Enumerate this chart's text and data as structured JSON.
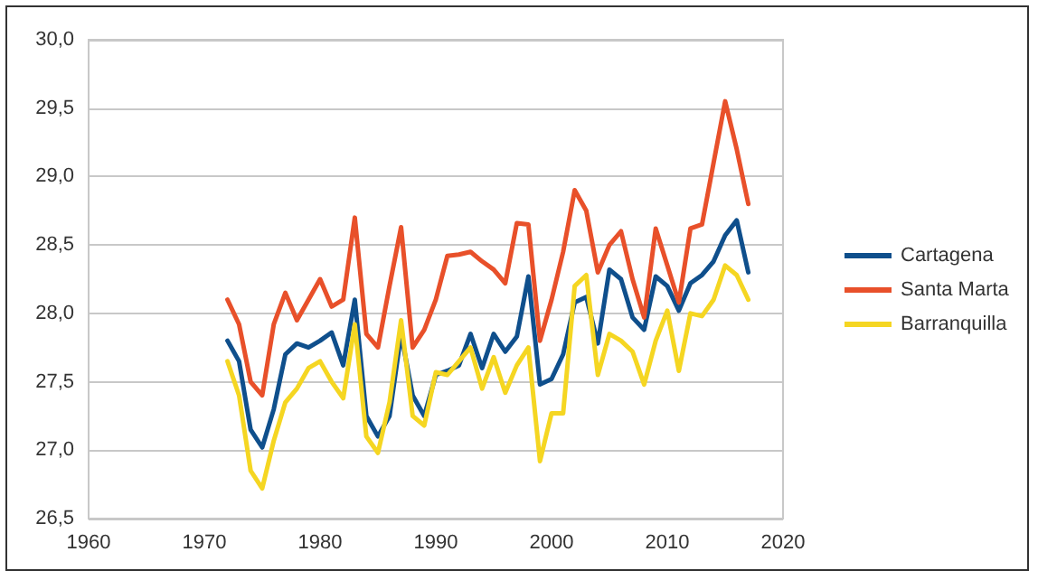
{
  "chart_data": {
    "type": "line",
    "x": [
      1972,
      1973,
      1974,
      1975,
      1976,
      1977,
      1978,
      1979,
      1980,
      1981,
      1982,
      1983,
      1984,
      1985,
      1986,
      1987,
      1988,
      1989,
      1990,
      1991,
      1992,
      1993,
      1994,
      1995,
      1996,
      1997,
      1998,
      1999,
      2000,
      2001,
      2002,
      2003,
      2004,
      2005,
      2006,
      2007,
      2008,
      2009,
      2010,
      2011,
      2012,
      2013,
      2014,
      2015,
      2016,
      2017
    ],
    "series": [
      {
        "name": "Cartagena",
        "color": "#0f4f8c",
        "values": [
          27.8,
          27.65,
          27.15,
          27.02,
          27.3,
          27.7,
          27.78,
          27.75,
          27.8,
          27.86,
          27.62,
          28.1,
          27.25,
          27.1,
          27.25,
          27.85,
          27.4,
          27.25,
          27.55,
          27.58,
          27.62,
          27.85,
          27.6,
          27.85,
          27.72,
          27.83,
          28.27,
          27.48,
          27.52,
          27.7,
          28.08,
          28.12,
          27.78,
          28.32,
          28.25,
          27.97,
          27.88,
          28.27,
          28.2,
          28.02,
          28.22,
          28.28,
          28.38,
          28.57,
          28.68,
          28.3
        ]
      },
      {
        "name": "Santa Marta",
        "color": "#e8502a",
        "values": [
          28.1,
          27.92,
          27.5,
          27.4,
          27.92,
          28.15,
          27.95,
          28.1,
          28.25,
          28.05,
          28.1,
          28.7,
          27.85,
          27.75,
          28.2,
          28.63,
          27.75,
          27.88,
          28.1,
          28.42,
          28.43,
          28.45,
          28.38,
          28.32,
          28.22,
          28.66,
          28.65,
          27.8,
          28.1,
          28.45,
          28.9,
          28.75,
          28.3,
          28.5,
          28.6,
          28.25,
          27.97,
          28.62,
          28.35,
          28.08,
          28.62,
          28.65,
          29.1,
          29.55,
          29.2,
          28.8
        ]
      },
      {
        "name": "Barranquilla",
        "color": "#f5d622",
        "values": [
          27.65,
          27.4,
          26.85,
          26.72,
          27.07,
          27.35,
          27.45,
          27.6,
          27.65,
          27.5,
          27.38,
          27.92,
          27.1,
          26.98,
          27.35,
          27.95,
          27.25,
          27.18,
          27.57,
          27.55,
          27.65,
          27.75,
          27.45,
          27.68,
          27.42,
          27.62,
          27.75,
          26.92,
          27.27,
          27.27,
          28.2,
          28.28,
          27.55,
          27.85,
          27.8,
          27.72,
          27.48,
          27.8,
          28.02,
          27.58,
          28.0,
          27.98,
          28.1,
          28.35,
          28.28,
          28.1
        ]
      }
    ],
    "xlim": [
      1960,
      2020
    ],
    "xticks": [
      1960,
      1970,
      1980,
      1990,
      2000,
      2010,
      2020
    ],
    "ylim": [
      26.5,
      30
    ],
    "yticks": [
      {
        "value": 26.5,
        "label": "26,5"
      },
      {
        "value": 27,
        "label": "27,0"
      },
      {
        "value": 27.5,
        "label": "27,5"
      },
      {
        "value": 28,
        "label": "28,0"
      },
      {
        "value": 28.5,
        "label": "28,5"
      },
      {
        "value": 29,
        "label": "29,0"
      },
      {
        "value": 29.5,
        "label": "29,5"
      },
      {
        "value": 30,
        "label": "30,0"
      }
    ],
    "grid": "y",
    "legend": "right",
    "marker": "none",
    "line_style": "solid"
  }
}
